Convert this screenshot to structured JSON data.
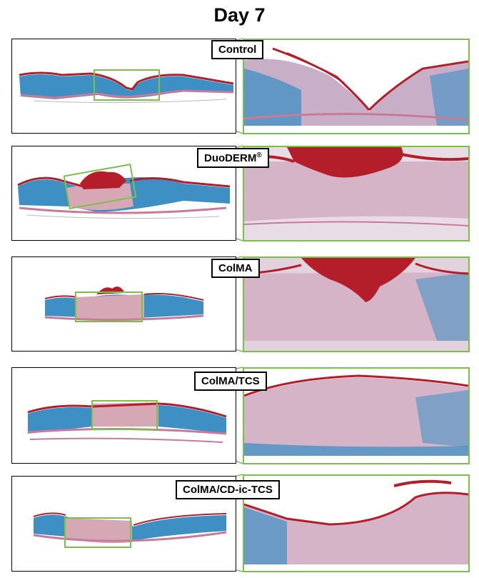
{
  "figure": {
    "title": "Day 7",
    "groups": [
      {
        "label": "Control",
        "superscript": ""
      },
      {
        "label": "DuoDERM",
        "superscript": "®"
      },
      {
        "label": "ColMA",
        "superscript": ""
      },
      {
        "label": "ColMA/TCS",
        "superscript": ""
      },
      {
        "label": "ColMA/CD-ic-TCS",
        "superscript": ""
      }
    ]
  },
  "colors": {
    "highlight_green": "#7dc049",
    "tissue_blue": "#3d8fc4",
    "tissue_pink": "#c97a9a",
    "tissue_red": "#b41e2a",
    "tissue_lavender": "#c9aec8"
  }
}
